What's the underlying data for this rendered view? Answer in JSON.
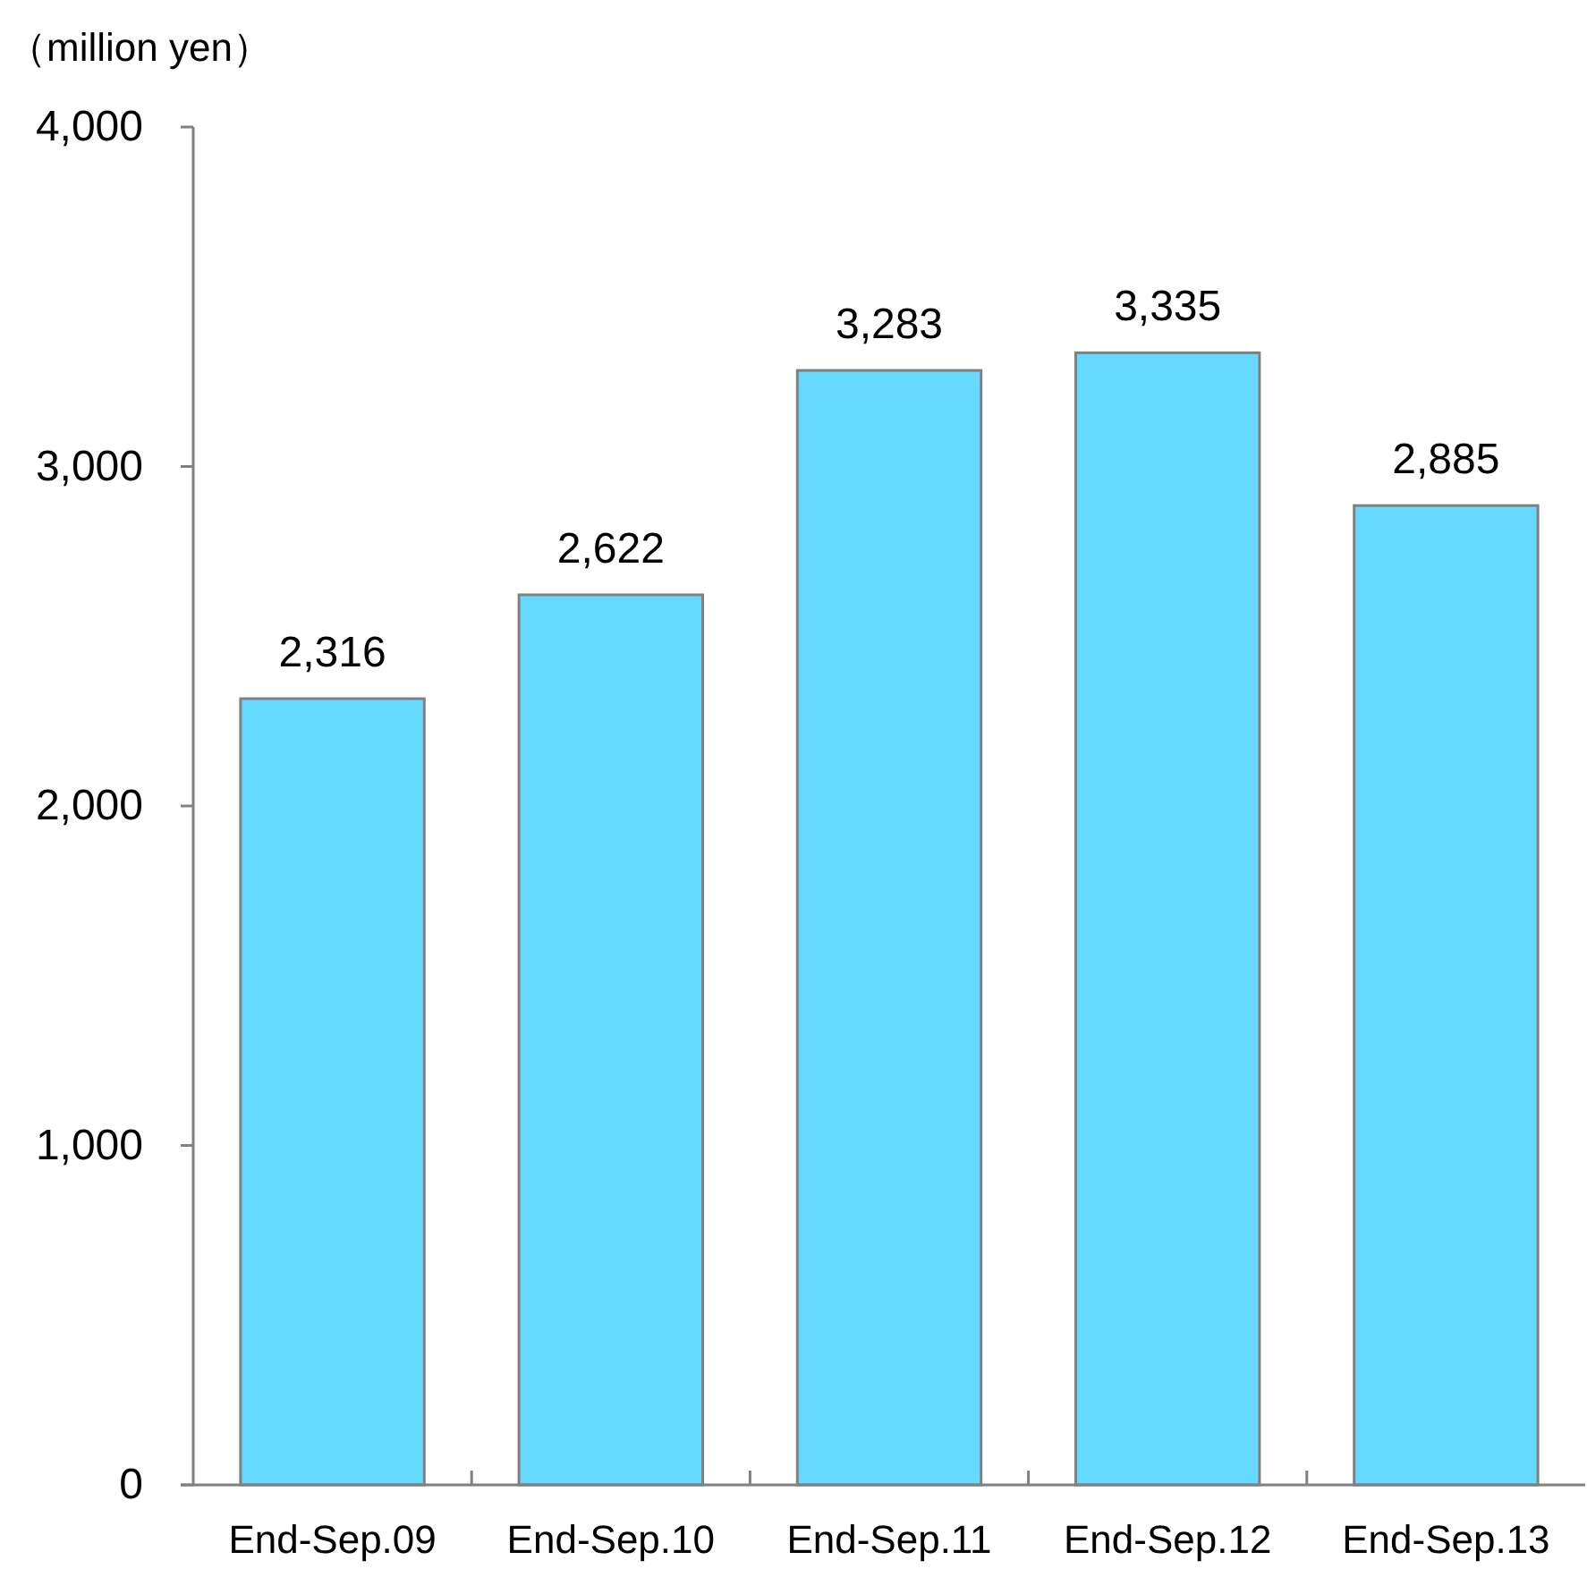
{
  "chart_data": {
    "type": "bar",
    "ylabel": "（million yen）",
    "categories": [
      "End-Sep.09",
      "End-Sep.10",
      "End-Sep.11",
      "End-Sep.12",
      "End-Sep.13"
    ],
    "values": [
      2316,
      2622,
      3283,
      3335,
      2885
    ],
    "value_labels": [
      "2,316",
      "2,622",
      "3,283",
      "3,335",
      "2,885"
    ],
    "color": "#66d9ff",
    "ylim": [
      0,
      4000
    ],
    "yticks": [
      0,
      {
        "value": 1000,
        "label": "1,000"
      },
      {
        "value": 2000,
        "label": "2,000"
      },
      {
        "value": 3000,
        "label": "3,000"
      },
      {
        "value": 4000,
        "label": "4,000"
      }
    ],
    "grid": false
  }
}
